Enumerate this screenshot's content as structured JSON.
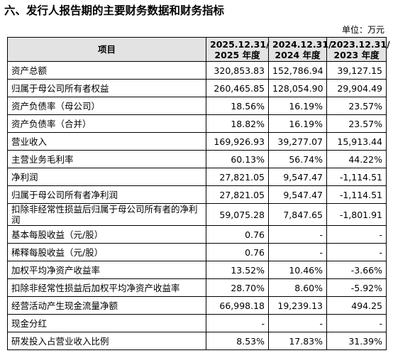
{
  "header": {
    "title": "六、发行人报告期的主要财务数据和财务指标",
    "unit": "单位：万元"
  },
  "table": {
    "columns": [
      "项目",
      [
        "2025.12.31/",
        "2025 年度"
      ],
      [
        "2024.12.31/",
        "2024 年度"
      ],
      [
        "2023.12.31/",
        "2023 年度"
      ]
    ],
    "rows": [
      [
        "资产总额",
        "320,853.83",
        "152,786.94",
        "39,127.15"
      ],
      [
        "归属于母公司所有者权益",
        "260,465.85",
        "128,054.90",
        "29,904.49"
      ],
      [
        "资产负债率（母公司）",
        "18.56%",
        "16.19%",
        "23.57%"
      ],
      [
        "资产负债率（合并）",
        "18.82%",
        "16.19%",
        "23.57%"
      ],
      [
        "营业收入",
        "169,926.93",
        "39,277.07",
        "15,913.44"
      ],
      [
        "主营业务毛利率",
        "60.13%",
        "56.74%",
        "44.22%"
      ],
      [
        "净利润",
        "27,821.05",
        "9,547.47",
        "-1,114.51"
      ],
      [
        "归属于母公司所有者净利润",
        "27,821.05",
        "9,547.47",
        "-1,114.51"
      ],
      [
        "扣除非经常性损益后归属于母公司所有者的净利润",
        "59,075.28",
        "7,847.65",
        "-1,801.91"
      ],
      [
        "基本每股收益（元/股）",
        "0.76",
        "-",
        "-"
      ],
      [
        "稀释每股收益（元/股）",
        "0.76",
        "-",
        "-"
      ],
      [
        "加权平均净资产收益率",
        "13.52%",
        "10.46%",
        "-3.66%"
      ],
      [
        "扣除非经常性损益后加权平均净资产收益率",
        "28.70%",
        "8.60%",
        "-5.92%"
      ],
      [
        "经营活动产生现金流量净额",
        "66,998.18",
        "19,239.13",
        "494.25"
      ],
      [
        "现金分红",
        "-",
        "-",
        "-"
      ],
      [
        "研发投入占营业收入比例",
        "8.53%",
        "17.83%",
        "31.39%"
      ]
    ]
  }
}
